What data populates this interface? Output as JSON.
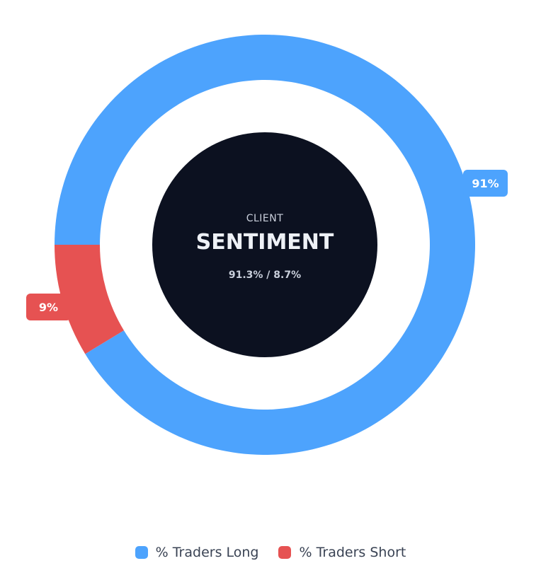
{
  "chart_data": {
    "type": "pie",
    "donut": true,
    "categories": [
      "% Traders Long",
      "% Traders Short"
    ],
    "values": [
      91.3,
      8.7
    ],
    "slice_labels": [
      "91%",
      "9%"
    ],
    "colors": [
      "#4da3fd",
      "#e65252"
    ],
    "center": {
      "kicker": "CLIENT",
      "title": "SENTIMENT",
      "ratio": "91.3% / 8.7%",
      "fill": "#0c1120"
    },
    "legend_position": "bottom"
  },
  "legend": {
    "long_label": "% Traders Long",
    "short_label": "% Traders Short",
    "long_color": "#4da3fd",
    "short_color": "#e65252"
  }
}
